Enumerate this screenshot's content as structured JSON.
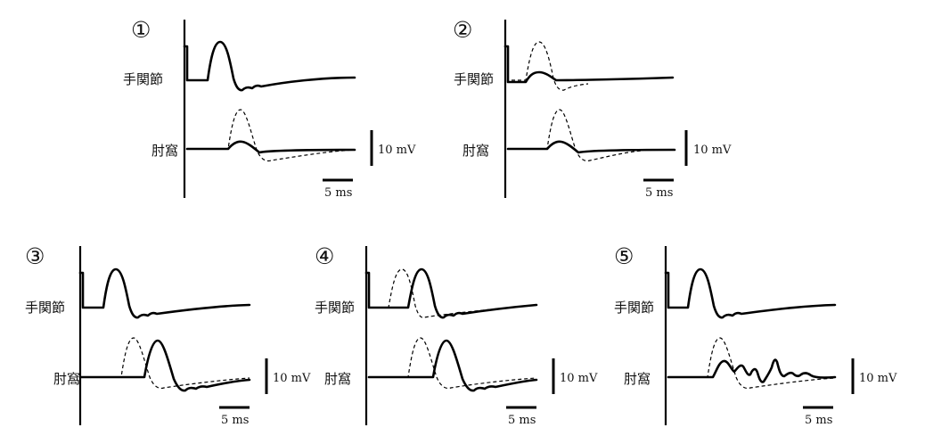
{
  "panels": [
    {
      "number": "①",
      "label_top": "手関節",
      "label_bottom": "肘窩",
      "scale_v": "10 mV",
      "scale_h": "5 ms"
    },
    {
      "number": "②",
      "label_top": "手関節",
      "label_bottom": "肘窩",
      "scale_v": "10 mV",
      "scale_h": "5 ms"
    },
    {
      "number": "③",
      "label_top": "手関節",
      "label_bottom": "肘窩",
      "scale_v": "10 mV",
      "scale_h": "5 ms"
    },
    {
      "number": "④",
      "label_top": "手関節",
      "label_bottom": "肘窩",
      "scale_v": "10 mV",
      "scale_h": "5 ms"
    },
    {
      "number": "⑤",
      "label_top": "手関節",
      "label_bottom": "肘窩",
      "scale_v": "10 mV",
      "scale_h": "5 ms"
    }
  ]
}
